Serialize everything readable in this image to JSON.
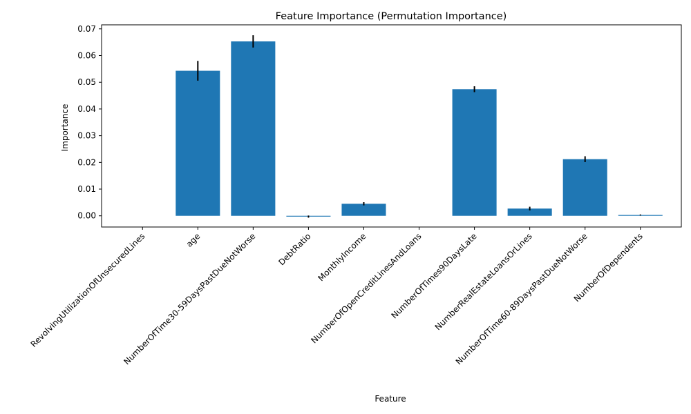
{
  "chart_data": {
    "type": "bar",
    "title": "Feature Importance (Permutation Importance)",
    "xlabel": "Feature",
    "ylabel": "Importance",
    "categories": [
      "RevolvingUtilizationOfUnsecuredLines",
      "age",
      "NumberOfTime30-59DaysPastDueNotWorse",
      "DebtRatio",
      "MonthlyIncome",
      "NumberOfOpenCreditLinesAndLoans",
      "NumberOfTimes90DaysLate",
      "NumberRealEstateLoansOrLines",
      "NumberOfTime60-89DaysPastDueNotWorse",
      "NumberOfDependents"
    ],
    "values": [
      0.0,
      0.0543,
      0.0653,
      -0.0003,
      0.0045,
      0.0,
      0.0474,
      0.0027,
      0.0212,
      0.0003
    ],
    "errors": [
      0.0,
      0.0037,
      0.0023,
      0.0004,
      0.0006,
      0.0,
      0.0011,
      0.0007,
      0.0011,
      0.0002
    ],
    "ylim": [
      -0.0042,
      0.0715
    ],
    "yticks": [
      "0.00",
      "0.01",
      "0.02",
      "0.03",
      "0.04",
      "0.05",
      "0.06",
      "0.07"
    ],
    "bar_color": "#1f77b4",
    "error_color": "#000000",
    "grid": false,
    "legend": "none"
  }
}
